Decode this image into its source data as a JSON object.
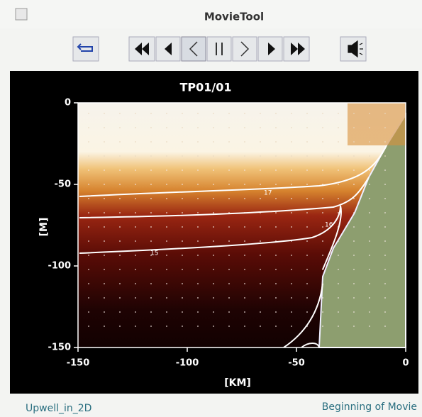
{
  "window": {
    "title": "MovieTool"
  },
  "plot": {
    "title": "TP01/01",
    "x_label": "[KM]",
    "y_label": "[M]",
    "xlim": [
      -150,
      0
    ],
    "ylim": [
      -150,
      0
    ],
    "xticks": [
      -150,
      -100,
      -50,
      0
    ],
    "yticks": [
      0,
      -50,
      -100,
      -150
    ],
    "contour_labels": [
      "17",
      "16",
      "15"
    ]
  },
  "status": {
    "left": "Upwell_in_2D",
    "right": "Beginning of Movie"
  }
}
